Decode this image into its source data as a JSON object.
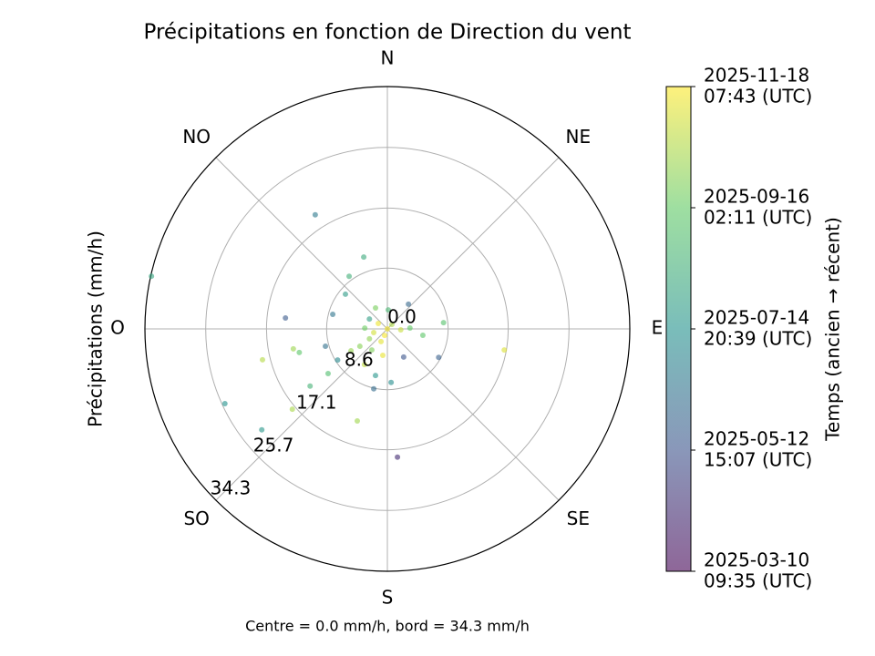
{
  "chart_data": {
    "type": "polar_scatter",
    "title": "Précipitations en fonction de Direction du vent",
    "ylabel": "Précipitations (mm/h)",
    "caption": "Centre = 0.0 mm/h, bord = 34.3 mm/h",
    "colorbar_label": "Temps (ancien → récent)",
    "theta_ticks": [
      {
        "value": 0,
        "label": "N"
      },
      {
        "value": 45,
        "label": "NE"
      },
      {
        "value": 90,
        "label": "E"
      },
      {
        "value": 135,
        "label": "SE"
      },
      {
        "value": 180,
        "label": "S"
      },
      {
        "value": 225,
        "label": "SO"
      },
      {
        "value": 270,
        "label": "O"
      },
      {
        "value": 315,
        "label": "NO"
      }
    ],
    "rlim": [
      0,
      34.3
    ],
    "rticks": [
      {
        "value": 0,
        "label": "0.0"
      },
      8.6,
      17.1,
      25.7,
      34.3
    ],
    "rlabel_angle": 225,
    "grid": true,
    "colormap": "viridis",
    "alpha": 0.6,
    "clim": [
      "2025-03-10T09:35Z",
      "2025-11-18T07:43Z"
    ],
    "cticks": [
      {
        "value": "2025-03-10T09:35Z",
        "label": [
          "2025-03-10",
          "09:35 (UTC)"
        ]
      },
      {
        "value": "2025-05-12T15:07Z",
        "label": [
          "2025-05-12",
          "15:07 (UTC)"
        ]
      },
      {
        "value": "2025-07-14T20:39Z",
        "label": [
          "2025-07-14",
          "20:39 (UTC)"
        ]
      },
      {
        "value": "2025-09-16T02:11Z",
        "label": [
          "2025-09-16",
          "02:11 (UTC)"
        ]
      },
      {
        "value": "2025-11-18T07:43Z",
        "label": [
          "2025-11-18",
          "07:43 (UTC)"
        ]
      }
    ],
    "points": {
      "theta": [
        327.7,
        341.8,
        282.6,
        276.1,
        256.1,
        258,
        255,
        245.3,
        231.2,
        229.8,
        198.1,
        175.5,
        119,
        100.2,
        83.6,
        192.8,
        176,
        233.5,
        254.4,
        324,
        309.6,
        285,
        40.4,
        100.2,
        233,
        238,
        212.7,
        189.8,
        149.9,
        194.3,
        255,
        241,
        301,
        45,
        272,
        206.6,
        94,
        237.7,
        330.5,
        2.7,
        87.7,
        239,
        298.8,
        203,
        216.5,
        0
      ],
      "r": [
        19.1,
        10.7,
        34.2,
        14.5,
        18.2,
        13.6,
        12.9,
        25.3,
        22.8,
        17.6,
        13.7,
        18.2,
        8.3,
        16.8,
        8.0,
        8.7,
        7.6,
        13.6,
        9.1,
        9.2,
        7.7,
        8.0,
        4.6,
        5.1,
        10.5,
        8.3,
        6.0,
        3.8,
        4.6,
        6.8,
        2.0,
        2.9,
        1.5,
        0.9,
        3.2,
        2.0,
        1.9,
        4.6,
        3.4,
        2.7,
        3.2,
        6.0,
        2.9,
        1.0,
        3.7,
        0
      ],
      "time": [
        "2025-06-20",
        "2025-08-10",
        "2025-08-05",
        "2025-05-20",
        "2025-10-20",
        "2025-10-10",
        "2025-09-10",
        "2025-07-15",
        "2025-07-20",
        "2025-10-15",
        "2025-10-12",
        "2025-04-10",
        "2025-05-25",
        "2025-11-05",
        "2025-09-05",
        "2025-06-05",
        "2025-07-10",
        "2025-08-20",
        "2025-06-10",
        "2025-08-15",
        "2025-07-25",
        "2025-06-15",
        "2025-06-01",
        "2025-09-12",
        "2025-09-01",
        "2025-07-05",
        "2025-10-25",
        "2025-11-10",
        "2025-05-15",
        "2025-07-18",
        "2025-11-01",
        "2025-10-05",
        "2025-11-12",
        "2025-10-18",
        "2025-09-20",
        "2025-11-08",
        "2025-10-28",
        "2025-10-02",
        "2025-09-25",
        "2025-08-25",
        "2025-09-15",
        "2025-10-08",
        "2025-07-28",
        "2025-11-15",
        "2025-09-28",
        "2025-11-16"
      ]
    }
  }
}
